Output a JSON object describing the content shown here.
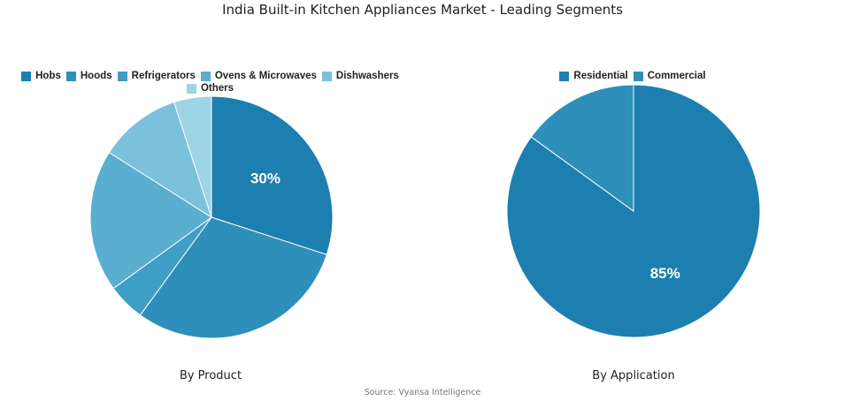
{
  "title": "India Built-in Kitchen Appliances Market - Leading Segments",
  "source": "Source: Vyansa Intelligence",
  "chart_data": [
    {
      "type": "pie",
      "title": "By Product",
      "slices": [
        {
          "name": "Hobs",
          "value": 30,
          "color": "#1c7fb0",
          "label": "30%"
        },
        {
          "name": "Hoods",
          "value": 30,
          "color": "#2e8fbb"
        },
        {
          "name": "Refrigerators",
          "value": 5,
          "color": "#3f9ec4"
        },
        {
          "name": "Ovens & Microwaves",
          "value": 19,
          "color": "#5aaed0"
        },
        {
          "name": "Dishwashers",
          "value": 11,
          "color": "#7cc1dc"
        },
        {
          "name": "Others",
          "value": 5,
          "color": "#9dd4e6"
        }
      ]
    },
    {
      "type": "pie",
      "title": "By Application",
      "slices": [
        {
          "name": "Residential",
          "value": 85,
          "color": "#1c7fb0",
          "label": "85%"
        },
        {
          "name": "Commercial",
          "value": 15,
          "color": "#2e8fbb"
        }
      ]
    }
  ]
}
